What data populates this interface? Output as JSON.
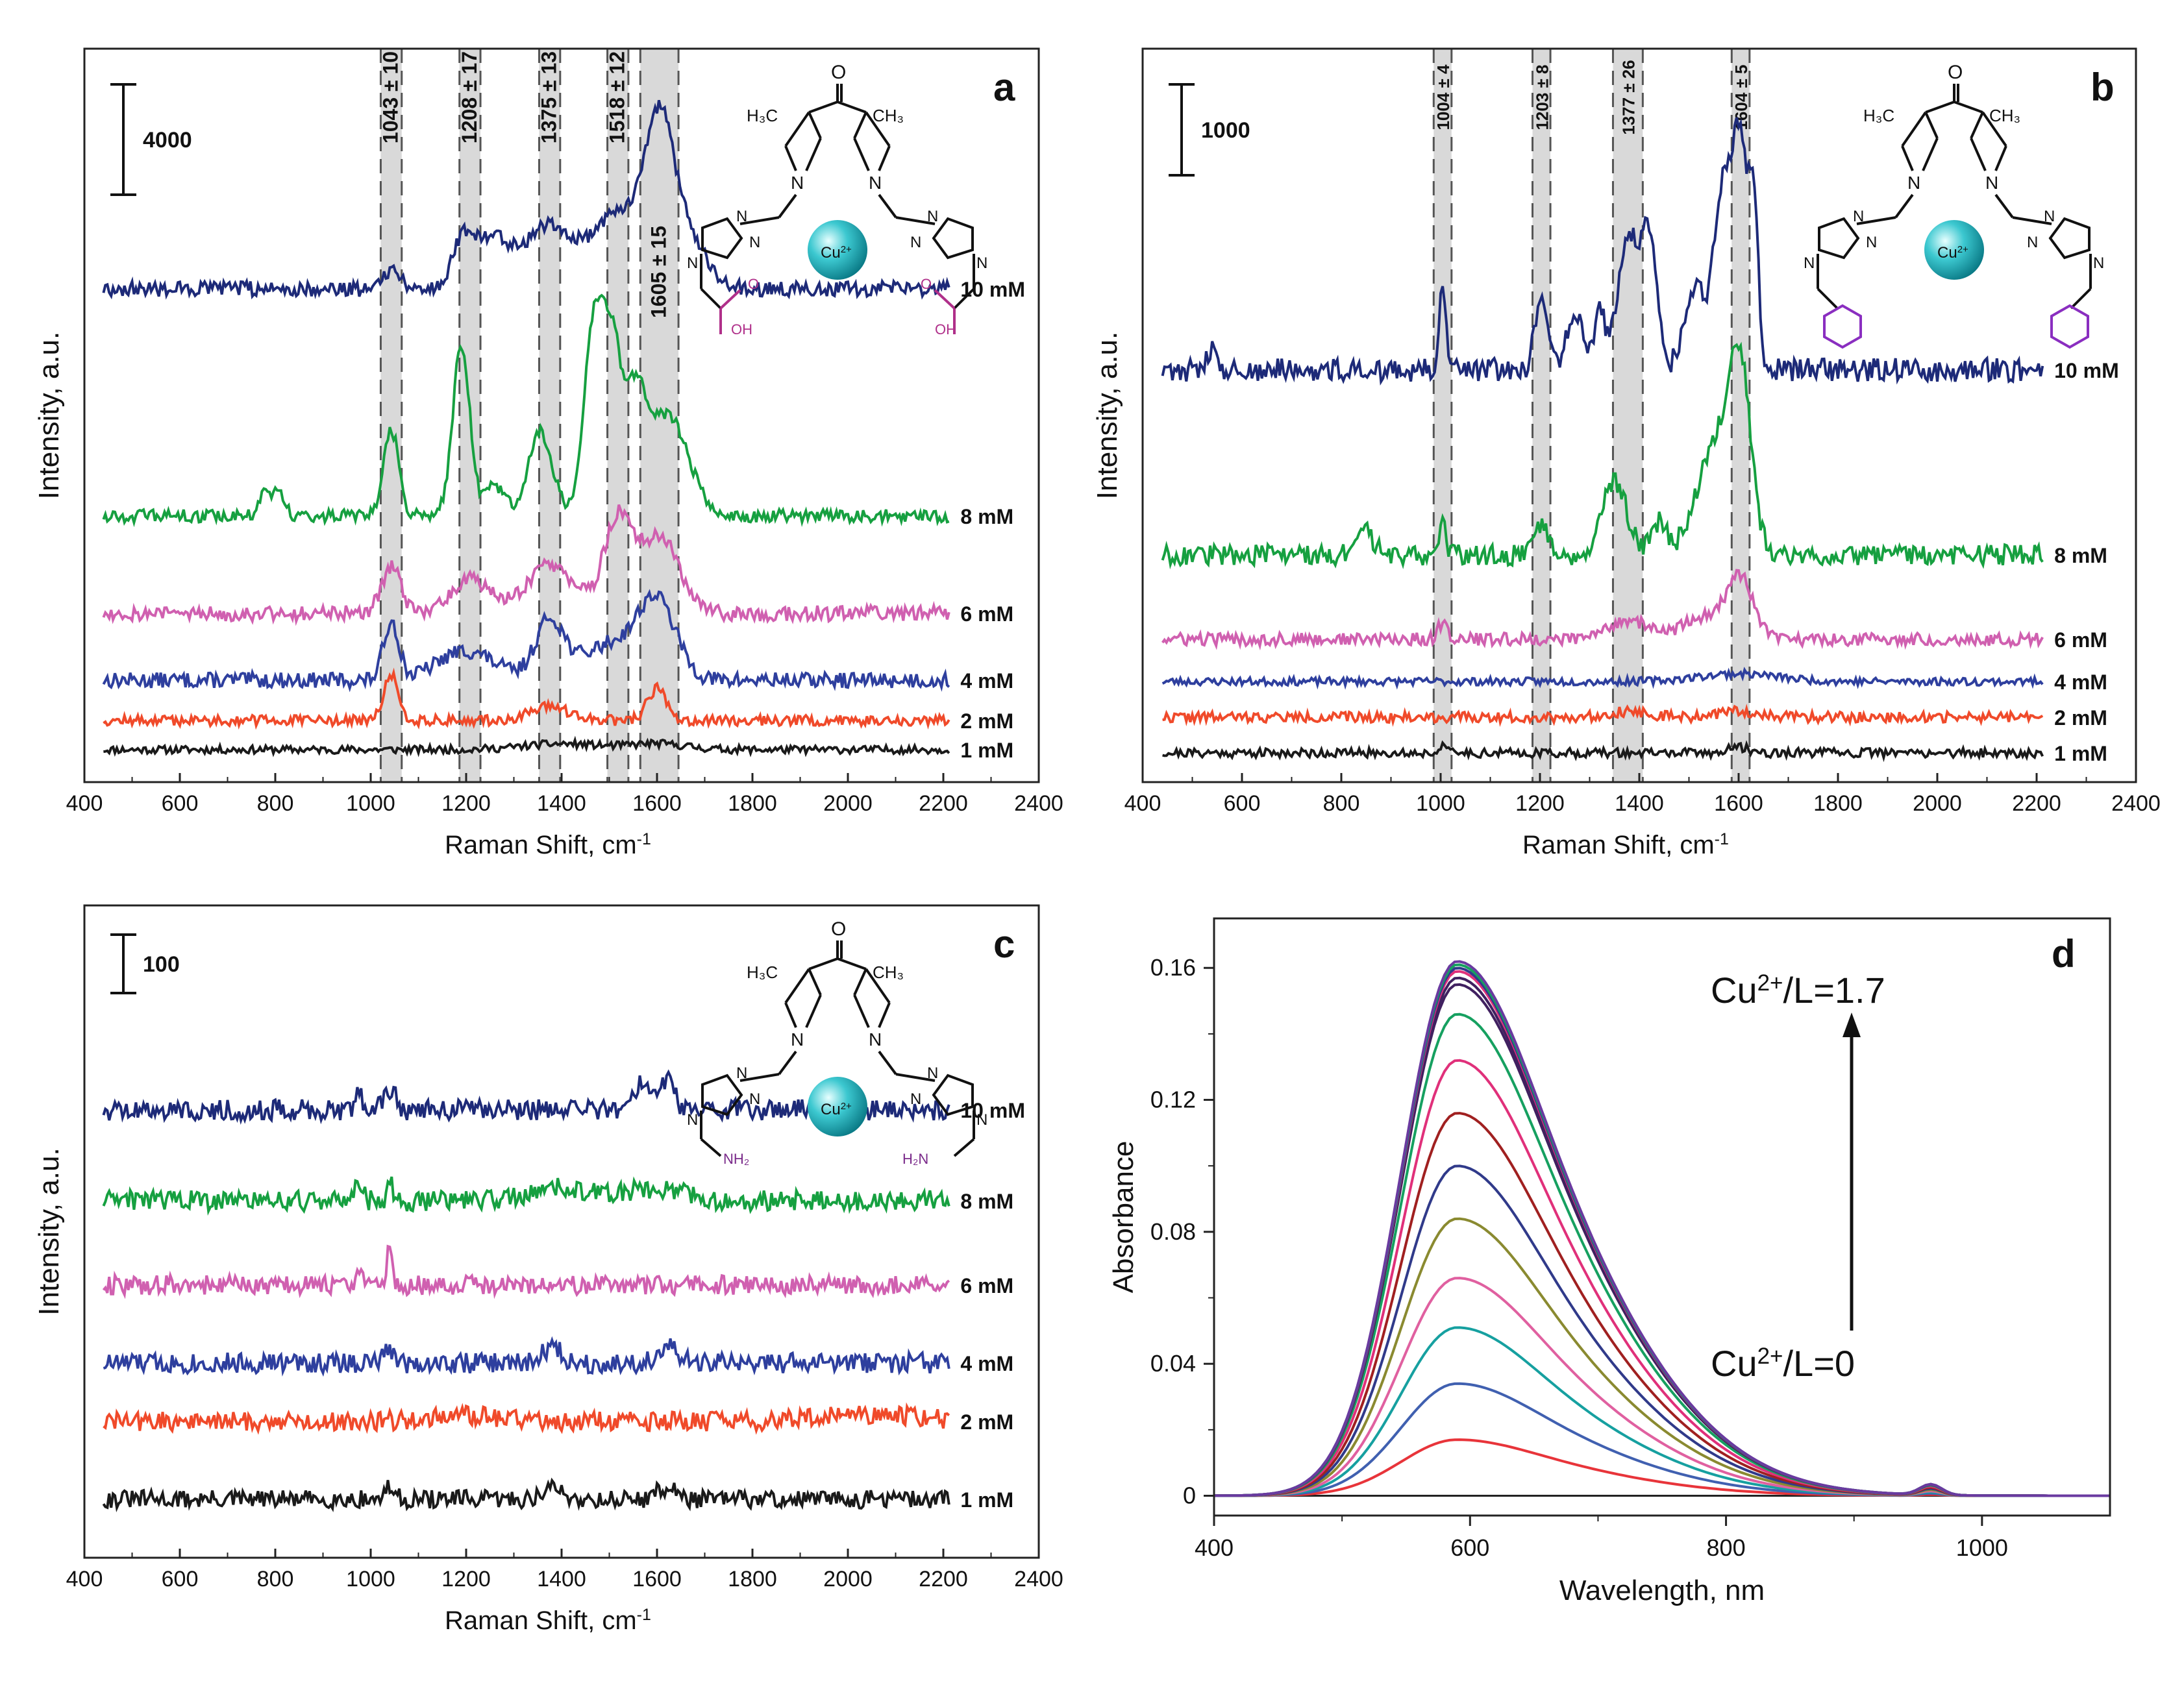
{
  "chart_data": [
    {
      "panel": "a",
      "type": "line",
      "xlabel": "Raman Shift, cm",
      "xlabel_sup": "-1",
      "ylabel": "Intensity, a.u.",
      "xlim": [
        400,
        2400
      ],
      "xticks": [
        400,
        600,
        800,
        1000,
        1200,
        1400,
        1600,
        1800,
        2000,
        2200,
        2400
      ],
      "scale_bar": "4000",
      "ligand_substituent": "COOH",
      "bands": [
        {
          "center": 1043,
          "label": "1043 ± 10"
        },
        {
          "center": 1208,
          "label": "1208 ± 17"
        },
        {
          "center": 1375,
          "label": "1375 ± 13"
        },
        {
          "center": 1518,
          "label": "1518 ± 12"
        },
        {
          "center": 1605,
          "label": "1605 ± 15"
        }
      ],
      "series": [
        {
          "name": "1 mM",
          "color": "#1a1a1a"
        },
        {
          "name": "2 mM",
          "color": "#f04a2a"
        },
        {
          "name": "4 mM",
          "color": "#2e3f9e"
        },
        {
          "name": "6 mM",
          "color": "#d060b0"
        },
        {
          "name": "8 mM",
          "color": "#16a040"
        },
        {
          "name": "10 mM",
          "color": "#1d2a78"
        }
      ]
    },
    {
      "panel": "b",
      "type": "line",
      "xlabel": "Raman Shift, cm",
      "xlabel_sup": "-1",
      "ylabel": "Intensity, a.u.",
      "xlim": [
        400,
        2400
      ],
      "xticks": [
        400,
        600,
        800,
        1000,
        1200,
        1400,
        1600,
        1800,
        2000,
        2200,
        2400
      ],
      "scale_bar": "1000",
      "ligand_substituent": "benzyl",
      "bands": [
        {
          "center": 1004,
          "label": "1004 ± 4"
        },
        {
          "center": 1203,
          "label": "1203 ± 8"
        },
        {
          "center": 1377,
          "label": "1377 ± 26"
        },
        {
          "center": 1604,
          "label": "1604 ± 5"
        }
      ],
      "series": [
        {
          "name": "1 mM",
          "color": "#1a1a1a"
        },
        {
          "name": "2 mM",
          "color": "#f04a2a"
        },
        {
          "name": "4 mM",
          "color": "#2e3f9e"
        },
        {
          "name": "6 mM",
          "color": "#d060b0"
        },
        {
          "name": "8 mM",
          "color": "#16a040"
        },
        {
          "name": "10 mM",
          "color": "#1d2a78"
        }
      ]
    },
    {
      "panel": "c",
      "type": "line",
      "xlabel": "Raman Shift, cm",
      "xlabel_sup": "-1",
      "ylabel": "Intensity, a.u.",
      "xlim": [
        400,
        2400
      ],
      "xticks": [
        400,
        600,
        800,
        1000,
        1200,
        1400,
        1600,
        1800,
        2000,
        2200,
        2400
      ],
      "scale_bar": "100",
      "ligand_substituent": "NH2",
      "series": [
        {
          "name": "1 mM",
          "color": "#1a1a1a"
        },
        {
          "name": "2 mM",
          "color": "#f04a2a"
        },
        {
          "name": "4 mM",
          "color": "#2e3f9e"
        },
        {
          "name": "6 mM",
          "color": "#d060b0"
        },
        {
          "name": "8 mM",
          "color": "#16a040"
        },
        {
          "name": "10 mM",
          "color": "#1d2a78"
        }
      ]
    },
    {
      "panel": "d",
      "type": "line",
      "xlabel": "Wavelength, nm",
      "ylabel": "Absorbance",
      "xlim": [
        400,
        1100
      ],
      "ylim": [
        -0.006,
        0.175
      ],
      "xticks": [
        400,
        600,
        800,
        1000
      ],
      "yticks": [
        0,
        0.04,
        0.08,
        0.12,
        0.16
      ],
      "ytick_labels": [
        "0",
        "0.04",
        "0.08",
        "0.12",
        "0.16"
      ],
      "peak_nm": 590,
      "series_peak_absorbance": [
        0.0,
        0.017,
        0.034,
        0.051,
        0.066,
        0.084,
        0.1,
        0.116,
        0.132,
        0.146,
        0.155,
        0.157,
        0.159,
        0.16,
        0.161,
        0.162
      ],
      "series_colors": [
        "#222222",
        "#e8343a",
        "#4060b0",
        "#16a0a0",
        "#e060a0",
        "#8a8a30",
        "#303a8a",
        "#a02020",
        "#e0307a",
        "#16a060",
        "#402060",
        "#402060",
        "#e0307a",
        "#303a8a",
        "#16a060",
        "#6a3aa0"
      ],
      "annotation_top": "Cu",
      "annotation_top_sup": "2+",
      "annotation_top_suffix": "/L=1.7",
      "annotation_bottom": "Cu",
      "annotation_bottom_sup": "2+",
      "annotation_bottom_suffix": "/L=0"
    }
  ],
  "molecule": {
    "cu_label": "Cu",
    "cu_sup": "2+",
    "n_label": "N",
    "o_label": "O",
    "h3c_label": "H₃C",
    "ch3_label": "CH₃",
    "oh_label": "OH",
    "nh2_label": "NH₂",
    "h2n_label": "H₂N"
  }
}
